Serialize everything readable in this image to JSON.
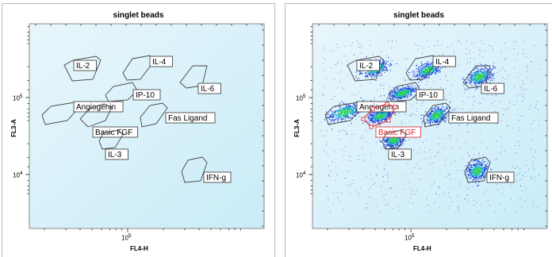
{
  "colors": {
    "plot_bg_top": "#e8f6fb",
    "plot_bg_bottom": "#c9ecf8",
    "gate_stroke": "#444444",
    "selected_gate": "#e0202a",
    "density_low": "#1f3fd6",
    "density_mid": "#18b4c0",
    "density_high": "#34d24a"
  },
  "panels": [
    {
      "title": "singlet beads",
      "xlabel": "FL4-H",
      "ylabel": "FL3-A",
      "x_tick_label": "10^5",
      "y_tick_labels": [
        "10^5",
        "10^4"
      ],
      "shows_events": false,
      "gates": [
        {
          "label": "IL-2",
          "selected": false
        },
        {
          "label": "IL-4",
          "selected": false
        },
        {
          "label": "IL-6",
          "selected": false
        },
        {
          "label": "IP-10",
          "selected": false
        },
        {
          "label": "Angiogenin",
          "selected": false
        },
        {
          "label": "Basic FGF",
          "selected": false
        },
        {
          "label": "Fas Ligand",
          "selected": false
        },
        {
          "label": "IL-3",
          "selected": false
        },
        {
          "label": "IFN-g",
          "selected": false
        }
      ]
    },
    {
      "title": "singlet beads",
      "xlabel": "FL4-H",
      "ylabel": "FL3-A",
      "x_tick_label": "10^5",
      "y_tick_labels": [
        "10^5",
        "10^4"
      ],
      "shows_events": true,
      "gates": [
        {
          "label": "IL-2",
          "selected": false
        },
        {
          "label": "IL-4",
          "selected": false
        },
        {
          "label": "IL-6",
          "selected": false
        },
        {
          "label": "IP-10",
          "selected": false
        },
        {
          "label": "Angiogenin",
          "selected": false
        },
        {
          "label": "Basic FGF",
          "selected": true
        },
        {
          "label": "Fas Ligand",
          "selected": false
        },
        {
          "label": "IL-3",
          "selected": false
        },
        {
          "label": "IFN-g",
          "selected": false
        }
      ]
    }
  ]
}
